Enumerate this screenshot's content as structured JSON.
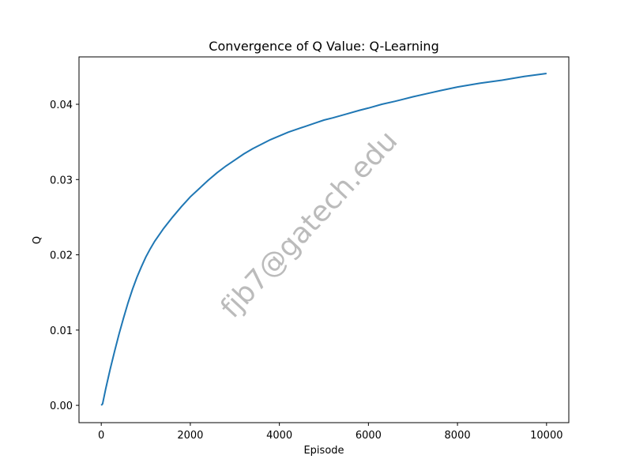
{
  "chart_data": {
    "type": "line",
    "title": "Convergence of Q Value: Q-Learning",
    "xlabel": "Episode",
    "ylabel": "Q",
    "xlim": [
      -500,
      10500
    ],
    "ylim": [
      -0.0023,
      0.0463
    ],
    "xticks": [
      0,
      2000,
      4000,
      6000,
      8000,
      10000
    ],
    "yticks": [
      0.0,
      0.01,
      0.02,
      0.03,
      0.04
    ],
    "ytick_labels": [
      "0.00",
      "0.01",
      "0.02",
      "0.03",
      "0.04"
    ],
    "grid": false,
    "legend": "none",
    "series": [
      {
        "color": "#1f77b4",
        "x": [
          0,
          30,
          100,
          200,
          300,
          400,
          500,
          600,
          700,
          800,
          900,
          1000,
          1100,
          1200,
          1400,
          1600,
          1800,
          2000,
          2200,
          2400,
          2600,
          2800,
          3000,
          3200,
          3400,
          3600,
          3800,
          4000,
          4200,
          4400,
          4600,
          4800,
          5000,
          5200,
          5500,
          5800,
          6000,
          6300,
          6600,
          7000,
          7300,
          7600,
          8000,
          8500,
          9000,
          9500,
          10000
        ],
        "y": [
          0.0,
          0.0002,
          0.0022,
          0.0048,
          0.0072,
          0.0095,
          0.0116,
          0.0136,
          0.0154,
          0.017,
          0.0184,
          0.0197,
          0.0208,
          0.0218,
          0.0235,
          0.025,
          0.0264,
          0.0277,
          0.0288,
          0.0299,
          0.0309,
          0.0318,
          0.0326,
          0.0334,
          0.0341,
          0.0347,
          0.0353,
          0.0358,
          0.0363,
          0.0367,
          0.0371,
          0.0375,
          0.0379,
          0.0382,
          0.0387,
          0.0392,
          0.0395,
          0.04,
          0.0404,
          0.041,
          0.0414,
          0.0418,
          0.0423,
          0.0428,
          0.0432,
          0.0437,
          0.0441
        ]
      }
    ]
  },
  "watermark": {
    "text": "fjb7@gatech.edu",
    "color": "#b0b0b0"
  }
}
